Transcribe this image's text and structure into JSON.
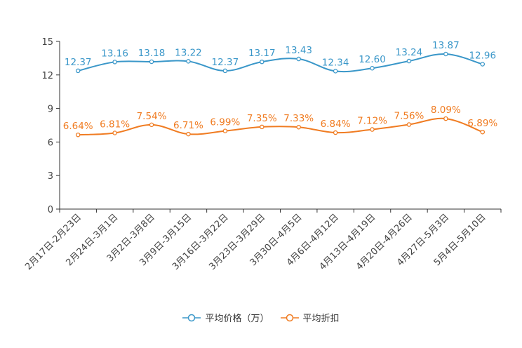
{
  "chart_data": {
    "type": "line",
    "title": "",
    "xlabel": "",
    "ylabel": "",
    "ylim": [
      0,
      15
    ],
    "yticks": [
      0,
      3,
      6,
      9,
      12,
      15
    ],
    "grid": false,
    "legend_position": "bottom-center",
    "categories": [
      "2月17日-2月23日",
      "2月24日-3月1日",
      "3月2日-3月8日",
      "3月9日-3月15日",
      "3月16日-3月22日",
      "3月23日-3月29日",
      "3月30日-4月5日",
      "4月6日-4月12日",
      "4月13日-4月19日",
      "4月20日-4月26日",
      "4月27日-5月3日",
      "5月4日-5月10日"
    ],
    "series": [
      {
        "name": "平均价格（万）",
        "color": "#3a97c9",
        "values": [
          12.37,
          13.16,
          13.18,
          13.22,
          12.37,
          13.17,
          13.43,
          12.34,
          12.6,
          13.24,
          13.87,
          12.96
        ],
        "labels": [
          "12.37",
          "13.16",
          "13.18",
          "13.22",
          "12.37",
          "13.17",
          "13.43",
          "12.34",
          "12.60",
          "13.24",
          "13.87",
          "12.96"
        ]
      },
      {
        "name": "平均折扣",
        "color": "#f07c22",
        "values": [
          6.64,
          6.81,
          7.54,
          6.71,
          6.99,
          7.35,
          7.33,
          6.84,
          7.12,
          7.56,
          8.09,
          6.89
        ],
        "labels": [
          "6.64%",
          "6.81%",
          "7.54%",
          "6.71%",
          "6.99%",
          "7.35%",
          "7.33%",
          "6.84%",
          "7.12%",
          "7.56%",
          "8.09%",
          "6.89%"
        ]
      }
    ]
  }
}
